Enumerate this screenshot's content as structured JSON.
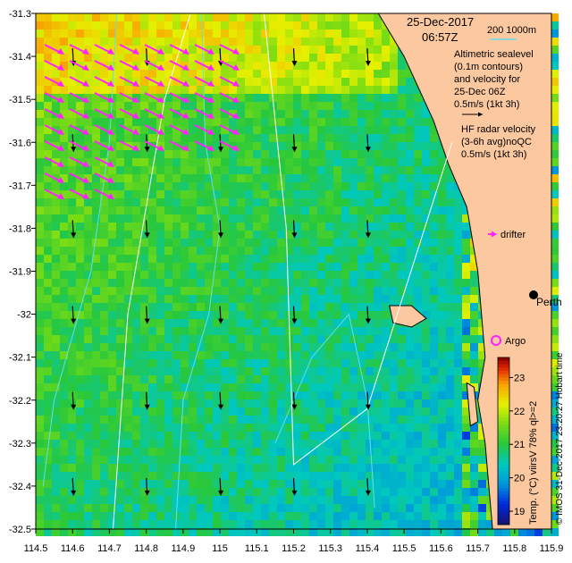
{
  "map": {
    "date": "25-Dec-2017",
    "time": "06:57Z",
    "isobath_label": "200  1000m",
    "altimetry_lines": [
      "Altimetric sealevel",
      "(0.1m contours)",
      "and velocity for",
      "25-Dec 06Z",
      "0.5m/s (1kt 3h)"
    ],
    "hf_lines": [
      "HF radar velocity",
      "(3-6h avg)noQC",
      "0.5m/s (1kt 3h)"
    ],
    "drifter_label": "drifter",
    "city_label": "Perth",
    "argo_label": "Argo",
    "hobart_label": "Hobart time",
    "credit": "© IMOS 31-Dec-2017 23:20:27 Hobart time",
    "colorbar_title": "Temp. (°C) viirsV 78% ql>=2",
    "colorbar_ticks": [
      "19",
      "20",
      "21",
      "22",
      "23"
    ],
    "colorbar_range": [
      18.6,
      23.6
    ],
    "lon_ticks": [
      "114.5",
      "114.6",
      "114.7",
      "114.8",
      "114.9",
      "115",
      "115.1",
      "115.2",
      "115.3",
      "115.4",
      "115.5",
      "115.6",
      "115.7",
      "115.8",
      "115.9"
    ],
    "lat_ticks": [
      "-31.3",
      "-31.4",
      "-31.5",
      "-31.6",
      "-31.7",
      "-31.8",
      "-31.9",
      "-32",
      "-32.1",
      "-32.2",
      "-32.3",
      "-32.4",
      "-32.5"
    ],
    "lon_range": [
      114.5,
      115.9
    ],
    "lat_range": [
      -32.5,
      -31.3
    ],
    "colors": {
      "land": "#fbc8a0",
      "coast": "#000000",
      "hf_vector": "#ff22ff",
      "alt_vector": "#000000",
      "contour": "#66ddee",
      "track": "#ffffff"
    }
  }
}
